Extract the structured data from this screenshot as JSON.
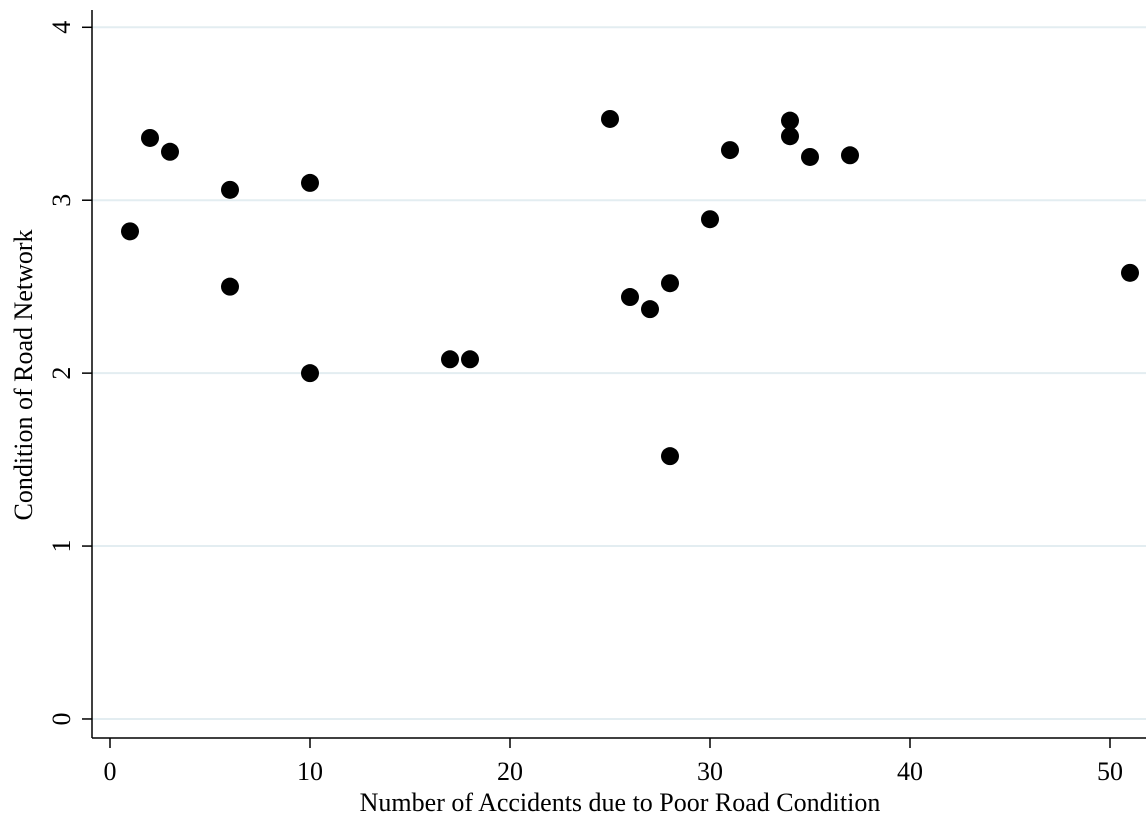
{
  "chart_data": {
    "type": "scatter",
    "x_label": "Number of Accidents due to Poor Road Condition",
    "y_label": "Condition of Road Network",
    "x": [
      1,
      2,
      3,
      6,
      6,
      10,
      10,
      17,
      18,
      25,
      26,
      27,
      28,
      28,
      30,
      31,
      34,
      34,
      35,
      37,
      51
    ],
    "values": [
      2.82,
      3.36,
      3.28,
      3.06,
      2.5,
      3.1,
      2.0,
      2.08,
      2.08,
      3.47,
      2.44,
      2.37,
      2.52,
      1.52,
      2.89,
      3.29,
      3.46,
      3.37,
      3.25,
      3.26,
      2.58
    ],
    "color": "#000000",
    "xlim": [
      -0.9,
      51.8
    ],
    "ylim": [
      -0.11,
      4.1
    ],
    "xticks": [
      0,
      10,
      20,
      30,
      40,
      50
    ],
    "yticks": [
      0,
      1,
      2,
      3,
      4
    ],
    "grid": true
  }
}
